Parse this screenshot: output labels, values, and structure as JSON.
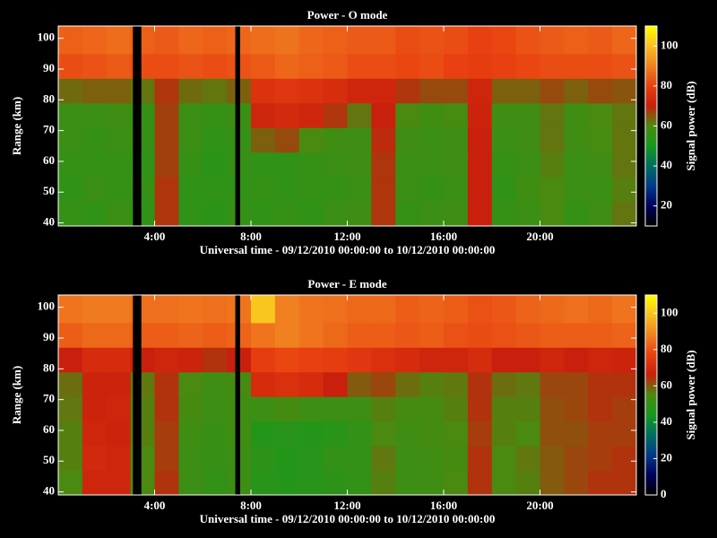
{
  "chart_data": [
    {
      "type": "heatmap",
      "title": "Power - O mode",
      "xlabel": "Universal time - 09/12/2010 00:00:00 to 10/12/2010 00:00:00",
      "ylabel": "Range (km)",
      "colorbar_label": "Signal power (dB)",
      "xlim": [
        0,
        24
      ],
      "ylim": [
        39,
        104
      ],
      "zlim": [
        10,
        110
      ],
      "xticks": [
        {
          "value": 4,
          "label": "4:00"
        },
        {
          "value": 8,
          "label": "8:00"
        },
        {
          "value": 12,
          "label": "12:00"
        },
        {
          "value": 16,
          "label": "16:00"
        },
        {
          "value": 20,
          "label": "20:00"
        }
      ],
      "yticks": [
        40,
        50,
        60,
        70,
        80,
        90,
        100
      ],
      "zticks": [
        20,
        40,
        60,
        80,
        100
      ],
      "colormap": [
        "#000000",
        "#00005a",
        "#003a8a",
        "#006e60",
        "#159a1e",
        "#4a8a10",
        "#c8200c",
        "#e84010",
        "#f08020",
        "#f8c020",
        "#ffff00"
      ],
      "x_bins": [
        0,
        1,
        2,
        3,
        4,
        5,
        6,
        7,
        8,
        9,
        10,
        11,
        12,
        13,
        14,
        15,
        16,
        17,
        18,
        19,
        20,
        21,
        22,
        23,
        24
      ],
      "y_bins": [
        39,
        47,
        55,
        63,
        71,
        79,
        87,
        95,
        104
      ],
      "gaps": [
        [
          3.1,
          3.45
        ],
        [
          7.35,
          7.55
        ]
      ],
      "z": [
        [
          56,
          55,
          57,
          55,
          68,
          55,
          54,
          56,
          55,
          56,
          55,
          57,
          58,
          68,
          56,
          57,
          58,
          70,
          56,
          57,
          60,
          56,
          58,
          62
        ],
        [
          55,
          57,
          56,
          56,
          68,
          55,
          55,
          55,
          56,
          55,
          56,
          56,
          57,
          68,
          57,
          56,
          57,
          70,
          55,
          58,
          60,
          57,
          57,
          61
        ],
        [
          56,
          56,
          56,
          55,
          67,
          56,
          54,
          56,
          55,
          55,
          56,
          57,
          58,
          68,
          57,
          57,
          58,
          70,
          56,
          57,
          61,
          57,
          58,
          62
        ],
        [
          57,
          56,
          57,
          56,
          67,
          57,
          55,
          56,
          64,
          66,
          60,
          58,
          58,
          69,
          58,
          57,
          58,
          70,
          57,
          58,
          62,
          58,
          59,
          62
        ],
        [
          57,
          57,
          58,
          56,
          67,
          57,
          56,
          57,
          72,
          73,
          72,
          68,
          62,
          70,
          60,
          58,
          59,
          71,
          58,
          58,
          62,
          58,
          60,
          62
        ],
        [
          63,
          64,
          64,
          62,
          68,
          63,
          62,
          64,
          76,
          77,
          76,
          74,
          72,
          72,
          68,
          66,
          66,
          72,
          64,
          64,
          66,
          64,
          66,
          65
        ],
        [
          82,
          83,
          84,
          82,
          82,
          83,
          82,
          83,
          84,
          86,
          85,
          84,
          82,
          82,
          81,
          82,
          80,
          79,
          80,
          81,
          82,
          82,
          82,
          83
        ],
        [
          85,
          86,
          87,
          85,
          84,
          86,
          85,
          86,
          87,
          88,
          86,
          85,
          84,
          84,
          82,
          83,
          82,
          80,
          81,
          83,
          84,
          85,
          84,
          86
        ]
      ]
    },
    {
      "type": "heatmap",
      "title": "Power - E mode",
      "xlabel": "Universal time - 09/12/2010 00:00:00 to 10/12/2010 00:00:00",
      "ylabel": "Range (km)",
      "colorbar_label": "Signal power (dB)",
      "xlim": [
        0,
        24
      ],
      "ylim": [
        39,
        104
      ],
      "zlim": [
        0,
        110
      ],
      "xticks": [
        {
          "value": 4,
          "label": "4:00"
        },
        {
          "value": 8,
          "label": "8:00"
        },
        {
          "value": 12,
          "label": "12:00"
        },
        {
          "value": 16,
          "label": "16:00"
        },
        {
          "value": 20,
          "label": "20:00"
        }
      ],
      "yticks": [
        40,
        50,
        60,
        70,
        80,
        90,
        100
      ],
      "zticks": [
        0,
        20,
        40,
        60,
        80,
        100
      ],
      "colormap": [
        "#000000",
        "#00005a",
        "#003a8a",
        "#006e60",
        "#159a1e",
        "#4a8a10",
        "#c8200c",
        "#e84010",
        "#f08020",
        "#f8c020",
        "#ffff00"
      ],
      "x_bins": [
        0,
        1,
        2,
        3,
        4,
        5,
        6,
        7,
        8,
        9,
        10,
        11,
        12,
        13,
        14,
        15,
        16,
        17,
        18,
        19,
        20,
        21,
        22,
        23,
        24
      ],
      "y_bins": [
        39,
        47,
        55,
        63,
        71,
        79,
        87,
        95,
        104
      ],
      "gaps": [
        [
          3.1,
          3.45
        ],
        [
          7.35,
          7.55
        ]
      ],
      "z": [
        [
          55,
          68,
          68,
          55,
          64,
          52,
          50,
          52,
          48,
          47,
          48,
          49,
          50,
          56,
          52,
          53,
          55,
          64,
          55,
          56,
          60,
          62,
          64,
          64
        ],
        [
          56,
          69,
          68,
          55,
          63,
          52,
          51,
          52,
          49,
          47,
          48,
          50,
          50,
          57,
          52,
          53,
          54,
          64,
          55,
          57,
          60,
          62,
          63,
          64
        ],
        [
          56,
          68,
          67,
          56,
          63,
          53,
          51,
          53,
          47,
          48,
          47,
          48,
          50,
          55,
          53,
          54,
          55,
          63,
          56,
          55,
          61,
          61,
          63,
          63
        ],
        [
          57,
          67,
          68,
          56,
          64,
          54,
          52,
          53,
          52,
          54,
          52,
          52,
          52,
          56,
          54,
          54,
          56,
          64,
          56,
          56,
          61,
          62,
          64,
          63
        ],
        [
          58,
          67,
          67,
          57,
          64,
          55,
          53,
          54,
          70,
          72,
          70,
          66,
          60,
          62,
          58,
          56,
          57,
          64,
          58,
          57,
          62,
          62,
          64,
          64
        ],
        [
          66,
          70,
          70,
          66,
          68,
          67,
          64,
          66,
          76,
          78,
          77,
          76,
          74,
          72,
          70,
          68,
          68,
          70,
          66,
          66,
          68,
          66,
          68,
          67
        ],
        [
          82,
          84,
          84,
          82,
          82,
          83,
          82,
          83,
          86,
          88,
          86,
          84,
          82,
          82,
          81,
          82,
          80,
          79,
          80,
          81,
          82,
          82,
          82,
          83
        ],
        [
          86,
          87,
          87,
          85,
          85,
          86,
          85,
          86,
          100,
          88,
          86,
          85,
          84,
          84,
          82,
          83,
          82,
          80,
          81,
          83,
          84,
          85,
          84,
          86
        ]
      ]
    }
  ]
}
